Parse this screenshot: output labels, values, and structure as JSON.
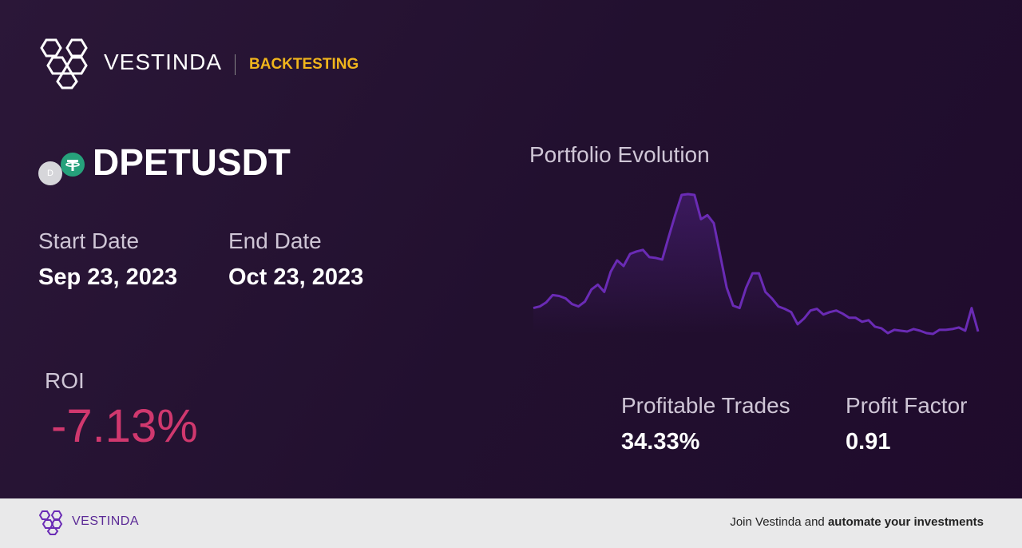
{
  "header": {
    "brand": "VESTINDA",
    "tag": "BACKTESTING"
  },
  "asset": {
    "icon": "D",
    "symbol": "DPETUSDT"
  },
  "start": {
    "label": "Start Date",
    "value": "Sep 23, 2023"
  },
  "end": {
    "label": "End Date",
    "value": "Oct 23, 2023"
  },
  "roi": {
    "label": "ROI",
    "value": "-7.13%"
  },
  "chart_data": {
    "type": "line",
    "title": "Portfolio Evolution",
    "color": "#6a2bb5",
    "values": [
      33,
      35,
      40,
      49,
      48,
      45,
      38,
      35,
      41,
      56,
      62,
      53,
      78,
      92,
      85,
      100,
      103,
      105,
      96,
      95,
      93,
      121,
      148,
      173,
      174,
      173,
      143,
      148,
      138,
      98,
      58,
      36,
      33,
      58,
      76,
      76,
      53,
      45,
      35,
      32,
      28,
      13,
      20,
      30,
      32,
      25,
      28,
      30,
      26,
      21,
      21,
      16,
      18,
      10,
      8,
      2,
      6,
      5,
      4,
      7,
      5,
      2,
      1,
      6,
      6,
      7,
      9,
      5,
      33,
      4
    ]
  },
  "stats": [
    {
      "label": "Profitable Trades",
      "value": "34.33%"
    },
    {
      "label": "Profit Factor",
      "value": "0.91"
    }
  ],
  "footer": {
    "brand": "VESTINDA",
    "text": "Join Vestinda and",
    "emphasis": "automate your investments"
  }
}
